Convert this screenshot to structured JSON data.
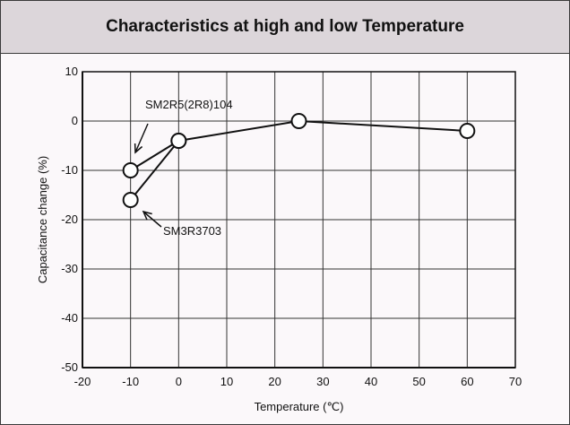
{
  "chart_data": {
    "type": "line",
    "title": "Characteristics at high and low Temperature",
    "xlabel": "Temperature (℃)",
    "ylabel": "Capacitance change (%)",
    "xlim": [
      -20,
      70
    ],
    "ylim": [
      -50,
      10
    ],
    "xticks": [
      -20,
      -10,
      0,
      10,
      20,
      30,
      40,
      50,
      60,
      70
    ],
    "yticks": [
      10,
      0,
      -10,
      -20,
      -30,
      -40,
      -50
    ],
    "grid": true,
    "series": [
      {
        "name": "SM2R5(2R8)104",
        "x": [
          -10,
          0,
          25,
          60
        ],
        "y": [
          -10,
          -4,
          0,
          -2
        ]
      },
      {
        "name": "SM3R3703",
        "x": [
          -10,
          0
        ],
        "y": [
          -16,
          -4
        ]
      }
    ],
    "colors": {
      "line": "#111111",
      "marker_fill": "#ffffff",
      "grid": "#333333"
    }
  }
}
